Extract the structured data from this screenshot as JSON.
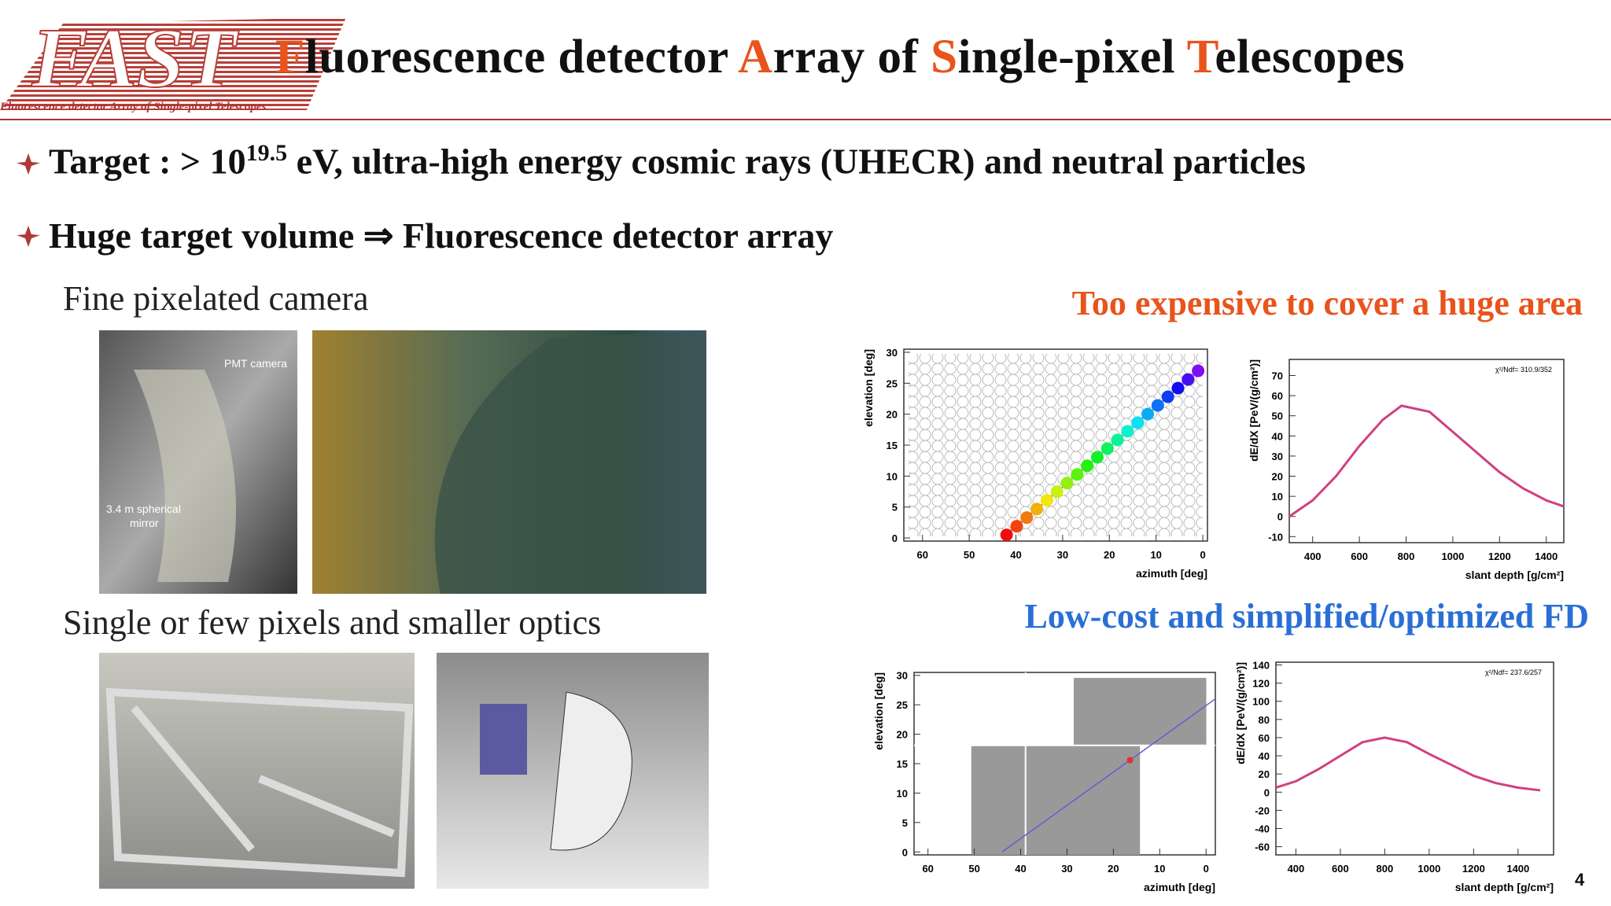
{
  "header": {
    "logo": "FAST",
    "logo_subtitle": "Fluorescence detector Array of Single-pixel Telescopes",
    "title": [
      {
        "text": "F",
        "color": "#e8541c"
      },
      {
        "text": "luorescence detector ",
        "color": "#111111"
      },
      {
        "text": "A",
        "color": "#e8541c"
      },
      {
        "text": "rray of ",
        "color": "#111111"
      },
      {
        "text": "S",
        "color": "#e8541c"
      },
      {
        "text": "ingle-pixel ",
        "color": "#111111"
      },
      {
        "text": "T",
        "color": "#e8541c"
      },
      {
        "text": "elescopes",
        "color": "#111111"
      }
    ]
  },
  "bullets": [
    {
      "prefix": "Target : > 10",
      "exponent": "19.5",
      "suffix": " eV, ultra-high energy cosmic rays (UHECR) and neutral particles"
    },
    {
      "text": "Huge target volume ⇒ Fluorescence detector array"
    }
  ],
  "left": {
    "section1": "Fine pixelated camera",
    "photo1_labels": [
      "PMT camera",
      "3.4 m spherical",
      "mirror"
    ],
    "section2": "Single or few pixels and smaller optics"
  },
  "right": {
    "heading1": {
      "text": "Too expensive to cover a huge area",
      "color": "#e8541c"
    },
    "heading2": {
      "text": "Low-cost and simplified/optimized FD",
      "color": "#2a6fd6"
    }
  },
  "plots": [
    {
      "kind": "camera",
      "xlabel": "azimuth  [deg]",
      "ylabel": "elevation  [deg]",
      "xlim": [
        64,
        -1
      ],
      "ylim": [
        -0.5,
        30.5
      ],
      "xticks": [
        60,
        50,
        40,
        30,
        20,
        10,
        0
      ],
      "yticks": [
        0,
        5,
        10,
        15,
        20,
        25,
        30
      ],
      "track": {
        "x": [
          42,
          1
        ],
        "y": [
          0.5,
          27
        ]
      }
    },
    {
      "kind": "profile",
      "xlabel": "slant depth [g/cm²]",
      "ylabel": "dE/dX [PeV/(g/cm²)]",
      "stat": "χ²/Ndf=  310.9/352",
      "xlim": [
        300,
        1475
      ],
      "ylim": [
        -13,
        78
      ],
      "xticks": [
        400,
        600,
        800,
        1000,
        1200,
        1400
      ],
      "yticks": [
        -10,
        0,
        10,
        20,
        30,
        40,
        50,
        60,
        70
      ],
      "fit": {
        "x": [
          300,
          400,
          500,
          600,
          700,
          780,
          900,
          1000,
          1100,
          1200,
          1300,
          1400,
          1475
        ],
        "y": [
          0,
          8,
          20,
          35,
          48,
          55,
          52,
          42,
          32,
          22,
          14,
          8,
          5
        ]
      }
    },
    {
      "kind": "camera",
      "xlabel": "azimuth  [deg]",
      "ylabel": "elevation  [deg]",
      "xlim": [
        63,
        -2
      ],
      "ylim": [
        -0.5,
        30.5
      ],
      "xticks": [
        60,
        50,
        40,
        30,
        20,
        10,
        0
      ],
      "yticks": [
        0,
        5,
        10,
        15,
        20,
        25,
        30
      ],
      "track": {
        "x": [
          44,
          -2
        ],
        "y": [
          0,
          26
        ]
      }
    },
    {
      "kind": "profile",
      "xlabel": "slant depth [g/cm²]",
      "ylabel": "dE/dX [PeV/(g/cm²)]",
      "stat": "χ²/Ndf=  237.6/257",
      "xlim": [
        310,
        1560
      ],
      "ylim": [
        -69,
        143
      ],
      "xticks": [
        400,
        600,
        800,
        1000,
        1200,
        1400
      ],
      "yticks": [
        -60,
        -40,
        -20,
        0,
        20,
        40,
        60,
        80,
        100,
        120,
        140
      ],
      "fit": {
        "x": [
          310,
          400,
          500,
          600,
          700,
          800,
          900,
          1000,
          1100,
          1200,
          1300,
          1400,
          1500
        ],
        "y": [
          5,
          12,
          25,
          40,
          55,
          60,
          55,
          42,
          30,
          18,
          10,
          5,
          2
        ]
      }
    }
  ],
  "page_number": "4"
}
